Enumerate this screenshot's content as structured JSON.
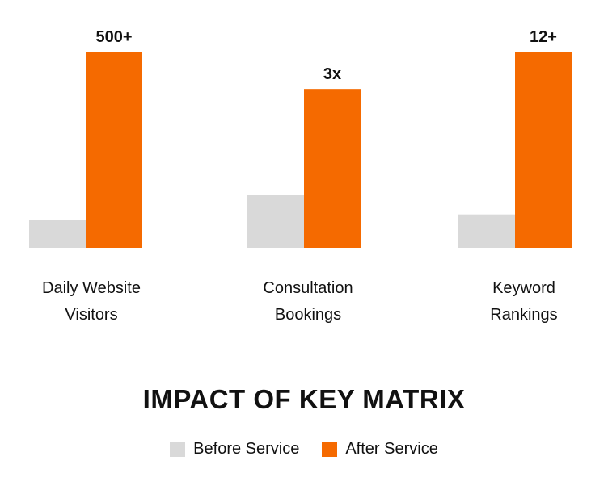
{
  "chart_data": {
    "type": "bar",
    "title": "IMPACT OF KEY MATRIX",
    "categories": [
      [
        "Daily Website",
        "Visitors"
      ],
      [
        "Consultation",
        "Bookings"
      ],
      [
        "Keyword",
        "Rankings"
      ]
    ],
    "series": [
      {
        "name": "Before Service",
        "color": "#d9d9d9",
        "values": [
          14,
          27,
          17
        ]
      },
      {
        "name": "After Service",
        "color": "#f56a00",
        "values": [
          100,
          81,
          100
        ],
        "labels": [
          "500+",
          "3x",
          "12+"
        ]
      }
    ],
    "ylim": [
      0,
      100
    ],
    "grid": false,
    "legend_position": "bottom"
  }
}
